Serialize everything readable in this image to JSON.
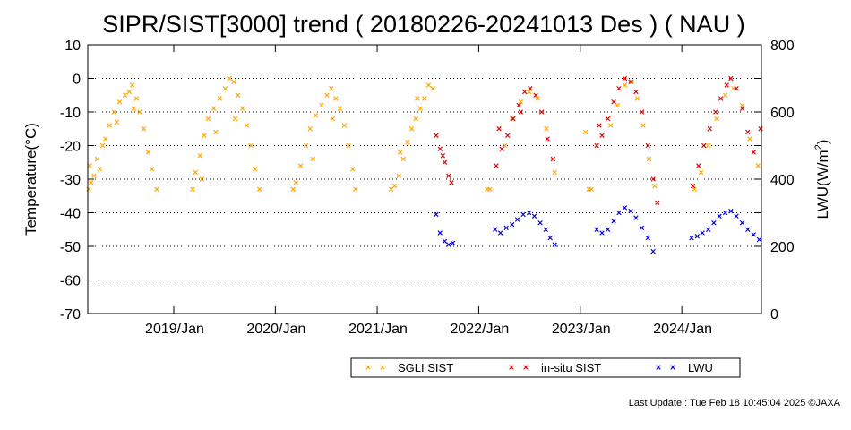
{
  "chart_data": {
    "type": "scatter",
    "title": "SIPR/SIST[3000] trend ( 20180226-20241013 Des ) ( NAU )",
    "ylabel": "Temperature(°C)",
    "y2label_main": "LWU(W/m",
    "y2label_sup": "2",
    "y2label_end": ")",
    "ylim": [
      -70,
      10
    ],
    "y2lim": [
      0,
      800
    ],
    "xlim": [
      "2018-02-26",
      "2024-10-13"
    ],
    "yticks": [
      10,
      0,
      -10,
      -20,
      -30,
      -40,
      -50,
      -60,
      -70
    ],
    "y2ticks": [
      800,
      600,
      400,
      200,
      0
    ],
    "xticks": [
      {
        "label": "2019/Jan",
        "date": "2019-01-01"
      },
      {
        "label": "2020/Jan",
        "date": "2020-01-01"
      },
      {
        "label": "2021/Jan",
        "date": "2021-01-01"
      },
      {
        "label": "2022/Jan",
        "date": "2022-01-01"
      },
      {
        "label": "2023/Jan",
        "date": "2023-01-01"
      },
      {
        "label": "2024/Jan",
        "date": "2024-01-01"
      }
    ],
    "grid": "horizontal dotted",
    "legend_position": "bottom-right",
    "colors": {
      "sgli": "#ffa500",
      "insitu": "#e00000",
      "lwu": "#0000e0"
    },
    "series": [
      {
        "name": "SGLI SIST",
        "axis": "left",
        "color": "#ffa500",
        "points": [
          [
            "2018-03-01",
            -33
          ],
          [
            "2018-03-10",
            -31
          ],
          [
            "2018-03-20",
            -29
          ],
          [
            "2018-04-01",
            -24
          ],
          [
            "2018-04-10",
            -27
          ],
          [
            "2018-04-20",
            -20
          ],
          [
            "2018-05-01",
            -18
          ],
          [
            "2018-05-15",
            -14
          ],
          [
            "2018-06-01",
            -10
          ],
          [
            "2018-06-20",
            -7
          ],
          [
            "2018-07-10",
            -5
          ],
          [
            "2018-07-25",
            -4
          ],
          [
            "2018-08-05",
            -2
          ],
          [
            "2018-08-20",
            -6
          ],
          [
            "2018-09-01",
            -10
          ],
          [
            "2018-09-15",
            -15
          ],
          [
            "2018-10-01",
            -22
          ],
          [
            "2018-10-15",
            -27
          ],
          [
            "2018-11-01",
            -33
          ],
          [
            "2018-03-05",
            -26
          ],
          [
            "2018-06-10",
            -13
          ],
          [
            "2018-08-10",
            -9
          ],
          [
            "2019-03-10",
            -33
          ],
          [
            "2019-03-20",
            -28
          ],
          [
            "2019-04-05",
            -23
          ],
          [
            "2019-04-20",
            -17
          ],
          [
            "2019-05-05",
            -12
          ],
          [
            "2019-05-25",
            -9
          ],
          [
            "2019-06-15",
            -6
          ],
          [
            "2019-07-05",
            -3
          ],
          [
            "2019-07-20",
            0
          ],
          [
            "2019-08-05",
            -1
          ],
          [
            "2019-08-20",
            -5
          ],
          [
            "2019-09-05",
            -9
          ],
          [
            "2019-09-20",
            -14
          ],
          [
            "2019-10-05",
            -20
          ],
          [
            "2019-10-20",
            -27
          ],
          [
            "2019-11-05",
            -33
          ],
          [
            "2019-04-12",
            -30
          ],
          [
            "2019-06-01",
            -16
          ],
          [
            "2019-08-10",
            -12
          ],
          [
            "2020-03-05",
            -33
          ],
          [
            "2020-03-15",
            -31
          ],
          [
            "2020-04-01",
            -26
          ],
          [
            "2020-04-20",
            -20
          ],
          [
            "2020-05-05",
            -15
          ],
          [
            "2020-05-25",
            -11
          ],
          [
            "2020-06-15",
            -8
          ],
          [
            "2020-07-05",
            -5
          ],
          [
            "2020-07-20",
            -3
          ],
          [
            "2020-08-05",
            -6
          ],
          [
            "2020-08-20",
            -9
          ],
          [
            "2020-09-05",
            -14
          ],
          [
            "2020-09-20",
            -20
          ],
          [
            "2020-10-05",
            -27
          ],
          [
            "2020-10-15",
            -33
          ],
          [
            "2020-05-15",
            -24
          ],
          [
            "2020-07-25",
            -12
          ],
          [
            "2021-02-20",
            -33
          ],
          [
            "2021-03-05",
            -32
          ],
          [
            "2021-03-20",
            -29
          ],
          [
            "2021-04-05",
            -24
          ],
          [
            "2021-04-20",
            -19
          ],
          [
            "2021-05-05",
            -15
          ],
          [
            "2021-05-20",
            -12
          ],
          [
            "2021-06-05",
            -9
          ],
          [
            "2021-06-20",
            -6
          ],
          [
            "2021-07-05",
            -2
          ],
          [
            "2021-07-20",
            -3
          ],
          [
            "2021-03-25",
            -22
          ],
          [
            "2021-05-25",
            -6
          ],
          [
            "2022-02-01",
            -33
          ],
          [
            "2022-02-10",
            -33
          ],
          [
            "2022-04-05",
            -20
          ],
          [
            "2022-05-01",
            -12
          ],
          [
            "2022-06-01",
            -7
          ],
          [
            "2022-07-01",
            -4
          ],
          [
            "2022-08-01",
            -6
          ],
          [
            "2022-09-01",
            -15
          ],
          [
            "2022-10-01",
            -28
          ],
          [
            "2023-02-01",
            -33
          ],
          [
            "2023-02-10",
            -33
          ],
          [
            "2023-01-20",
            -16
          ],
          [
            "2023-04-20",
            -14
          ],
          [
            "2023-05-15",
            -8
          ],
          [
            "2023-06-10",
            -2
          ],
          [
            "2023-07-05",
            -1
          ],
          [
            "2023-07-25",
            -6
          ],
          [
            "2023-08-15",
            -14
          ],
          [
            "2023-09-05",
            -24
          ],
          [
            "2023-09-25",
            -32
          ],
          [
            "2024-02-15",
            -33
          ],
          [
            "2024-03-10",
            -28
          ],
          [
            "2024-04-05",
            -20
          ],
          [
            "2024-05-05",
            -12
          ],
          [
            "2024-06-05",
            -5
          ],
          [
            "2024-07-05",
            -3
          ],
          [
            "2024-08-05",
            -8
          ],
          [
            "2024-09-01",
            -18
          ],
          [
            "2024-10-01",
            -26
          ]
        ]
      },
      {
        "name": "in-situ SIST",
        "axis": "left",
        "color": "#e00000",
        "points": [
          [
            "2021-08-01",
            -17
          ],
          [
            "2021-08-15",
            -21
          ],
          [
            "2021-09-01",
            -25
          ],
          [
            "2021-09-15",
            -29
          ],
          [
            "2021-09-25",
            -31
          ],
          [
            "2021-08-25",
            -23
          ],
          [
            "2022-03-05",
            -26
          ],
          [
            "2022-03-25",
            -21
          ],
          [
            "2022-04-15",
            -17
          ],
          [
            "2022-05-05",
            -12
          ],
          [
            "2022-05-25",
            -8
          ],
          [
            "2022-06-15",
            -4
          ],
          [
            "2022-07-05",
            -3
          ],
          [
            "2022-07-25",
            -5
          ],
          [
            "2022-08-15",
            -10
          ],
          [
            "2022-09-05",
            -18
          ],
          [
            "2022-09-25",
            -24
          ],
          [
            "2022-03-15",
            -15
          ],
          [
            "2022-06-01",
            -10
          ],
          [
            "2023-03-01",
            -20
          ],
          [
            "2023-03-20",
            -17
          ],
          [
            "2023-04-10",
            -12
          ],
          [
            "2023-05-01",
            -7
          ],
          [
            "2023-05-20",
            -3
          ],
          [
            "2023-06-10",
            0
          ],
          [
            "2023-07-01",
            -1
          ],
          [
            "2023-07-20",
            -4
          ],
          [
            "2023-08-10",
            -10
          ],
          [
            "2023-09-01",
            -20
          ],
          [
            "2023-09-20",
            -30
          ],
          [
            "2023-10-05",
            -37
          ],
          [
            "2023-03-10",
            -14
          ],
          [
            "2024-02-10",
            -32
          ],
          [
            "2024-03-01",
            -26
          ],
          [
            "2024-03-20",
            -20
          ],
          [
            "2024-04-10",
            -15
          ],
          [
            "2024-05-01",
            -10
          ],
          [
            "2024-05-20",
            -6
          ],
          [
            "2024-06-10",
            -2
          ],
          [
            "2024-06-25",
            0
          ],
          [
            "2024-07-15",
            -3
          ],
          [
            "2024-08-05",
            -9
          ],
          [
            "2024-08-25",
            -16
          ],
          [
            "2024-09-15",
            -22
          ],
          [
            "2024-10-10",
            -15
          ]
        ]
      },
      {
        "name": "LWU",
        "axis": "right",
        "color": "#0000e0",
        "points": [
          [
            "2021-08-01",
            295
          ],
          [
            "2021-08-15",
            240
          ],
          [
            "2021-09-01",
            215
          ],
          [
            "2021-09-15",
            205
          ],
          [
            "2021-09-30",
            210
          ],
          [
            "2022-03-01",
            250
          ],
          [
            "2022-03-20",
            240
          ],
          [
            "2022-04-10",
            255
          ],
          [
            "2022-05-01",
            265
          ],
          [
            "2022-05-20",
            280
          ],
          [
            "2022-06-10",
            295
          ],
          [
            "2022-07-01",
            300
          ],
          [
            "2022-07-20",
            290
          ],
          [
            "2022-08-10",
            270
          ],
          [
            "2022-08-30",
            250
          ],
          [
            "2022-09-15",
            225
          ],
          [
            "2022-10-01",
            205
          ],
          [
            "2023-03-01",
            250
          ],
          [
            "2023-03-20",
            240
          ],
          [
            "2023-04-10",
            250
          ],
          [
            "2023-05-01",
            275
          ],
          [
            "2023-05-20",
            300
          ],
          [
            "2023-06-10",
            315
          ],
          [
            "2023-07-01",
            305
          ],
          [
            "2023-07-20",
            285
          ],
          [
            "2023-08-10",
            255
          ],
          [
            "2023-09-01",
            225
          ],
          [
            "2023-09-20",
            185
          ],
          [
            "2024-02-05",
            225
          ],
          [
            "2024-02-25",
            230
          ],
          [
            "2024-03-15",
            240
          ],
          [
            "2024-04-05",
            250
          ],
          [
            "2024-04-25",
            270
          ],
          [
            "2024-05-15",
            290
          ],
          [
            "2024-06-05",
            300
          ],
          [
            "2024-06-25",
            305
          ],
          [
            "2024-07-15",
            290
          ],
          [
            "2024-08-05",
            270
          ],
          [
            "2024-08-25",
            250
          ],
          [
            "2024-09-15",
            235
          ],
          [
            "2024-10-05",
            220
          ]
        ]
      }
    ]
  },
  "footer": "Last Update : Tue Feb 18 10:45:04 2025  ©JAXA"
}
